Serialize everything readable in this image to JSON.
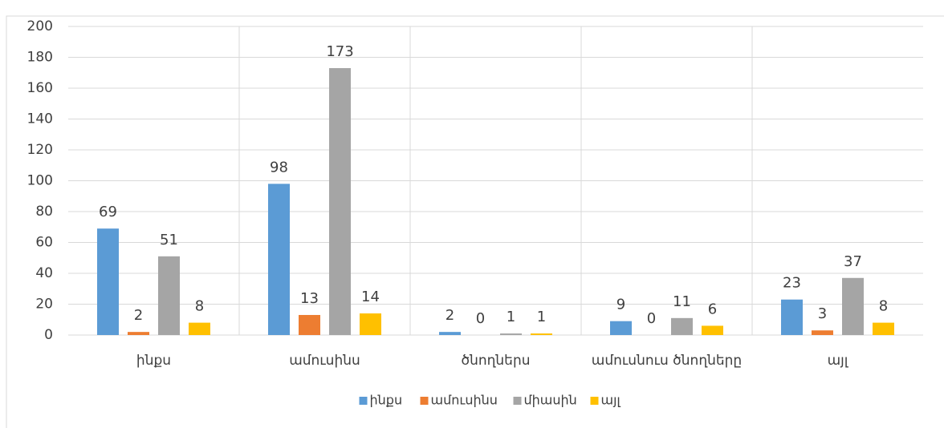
{
  "chart_data": {
    "type": "bar",
    "categories": [
      "ինքս",
      "ամուսինս",
      "ծնողներս",
      "ամուսնուս ծնողները",
      "այլ"
    ],
    "series": [
      {
        "name": "ինքս",
        "color": "#5b9bd5",
        "values": [
          69,
          98,
          2,
          9,
          23
        ]
      },
      {
        "name": "ամուսինս",
        "color": "#ed7d31",
        "values": [
          2,
          13,
          0,
          0,
          3
        ]
      },
      {
        "name": "միասին",
        "color": "#a5a5a5",
        "values": [
          51,
          173,
          1,
          11,
          37
        ]
      },
      {
        "name": "այլ",
        "color": "#ffc000",
        "values": [
          8,
          14,
          1,
          6,
          8
        ]
      }
    ],
    "ylim": [
      0,
      200
    ],
    "yticks": [
      0,
      20,
      40,
      60,
      80,
      100,
      120,
      140,
      160,
      180,
      200
    ],
    "grid": true,
    "legend": "bottom"
  }
}
